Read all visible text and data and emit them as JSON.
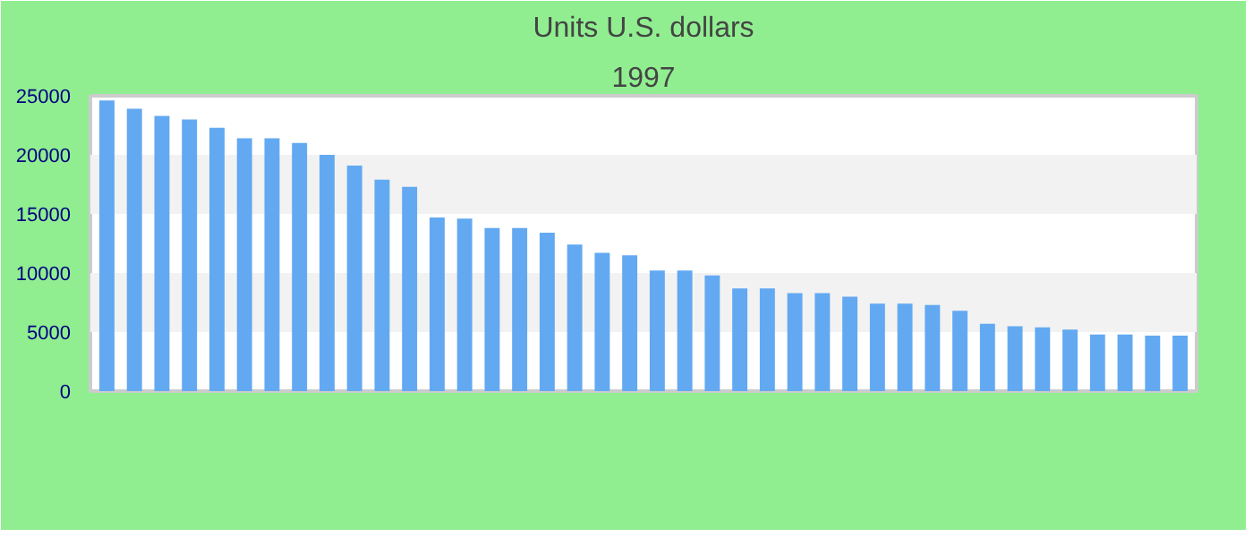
{
  "chart_data": {
    "type": "bar",
    "title": "Units U.S. dollars",
    "subtitle": "1997",
    "categories": [
      null,
      null,
      null,
      null,
      null,
      null,
      null,
      null,
      null,
      null,
      null,
      null,
      null,
      null,
      null,
      null,
      null,
      null,
      null,
      null,
      null,
      null,
      null,
      null,
      null,
      null,
      null,
      null,
      null,
      null,
      null,
      null,
      null,
      null,
      null,
      null,
      null,
      null,
      null,
      null
    ],
    "values": [
      24600,
      23900,
      23300,
      23000,
      22300,
      21400,
      21400,
      21000,
      20000,
      19100,
      17900,
      17300,
      14700,
      14600,
      13800,
      13800,
      13400,
      12400,
      11700,
      11500,
      10200,
      10200,
      9800,
      8700,
      8700,
      8300,
      8300,
      8000,
      7400,
      7400,
      7300,
      6800,
      5700,
      5500,
      5400,
      5200,
      4800,
      4800,
      4700,
      4700
    ],
    "color": "#62a9f2",
    "ylim": [
      0,
      25000
    ],
    "yticks": [
      0,
      5000,
      10000,
      15000,
      20000,
      25000
    ],
    "bands": [
      {
        "axis": "y",
        "from": 5000,
        "to": 10000,
        "color": "#f2f2f2"
      },
      {
        "axis": "y",
        "from": 15000,
        "to": 20000,
        "color": "#f2f2f2"
      }
    ],
    "grid": false
  }
}
